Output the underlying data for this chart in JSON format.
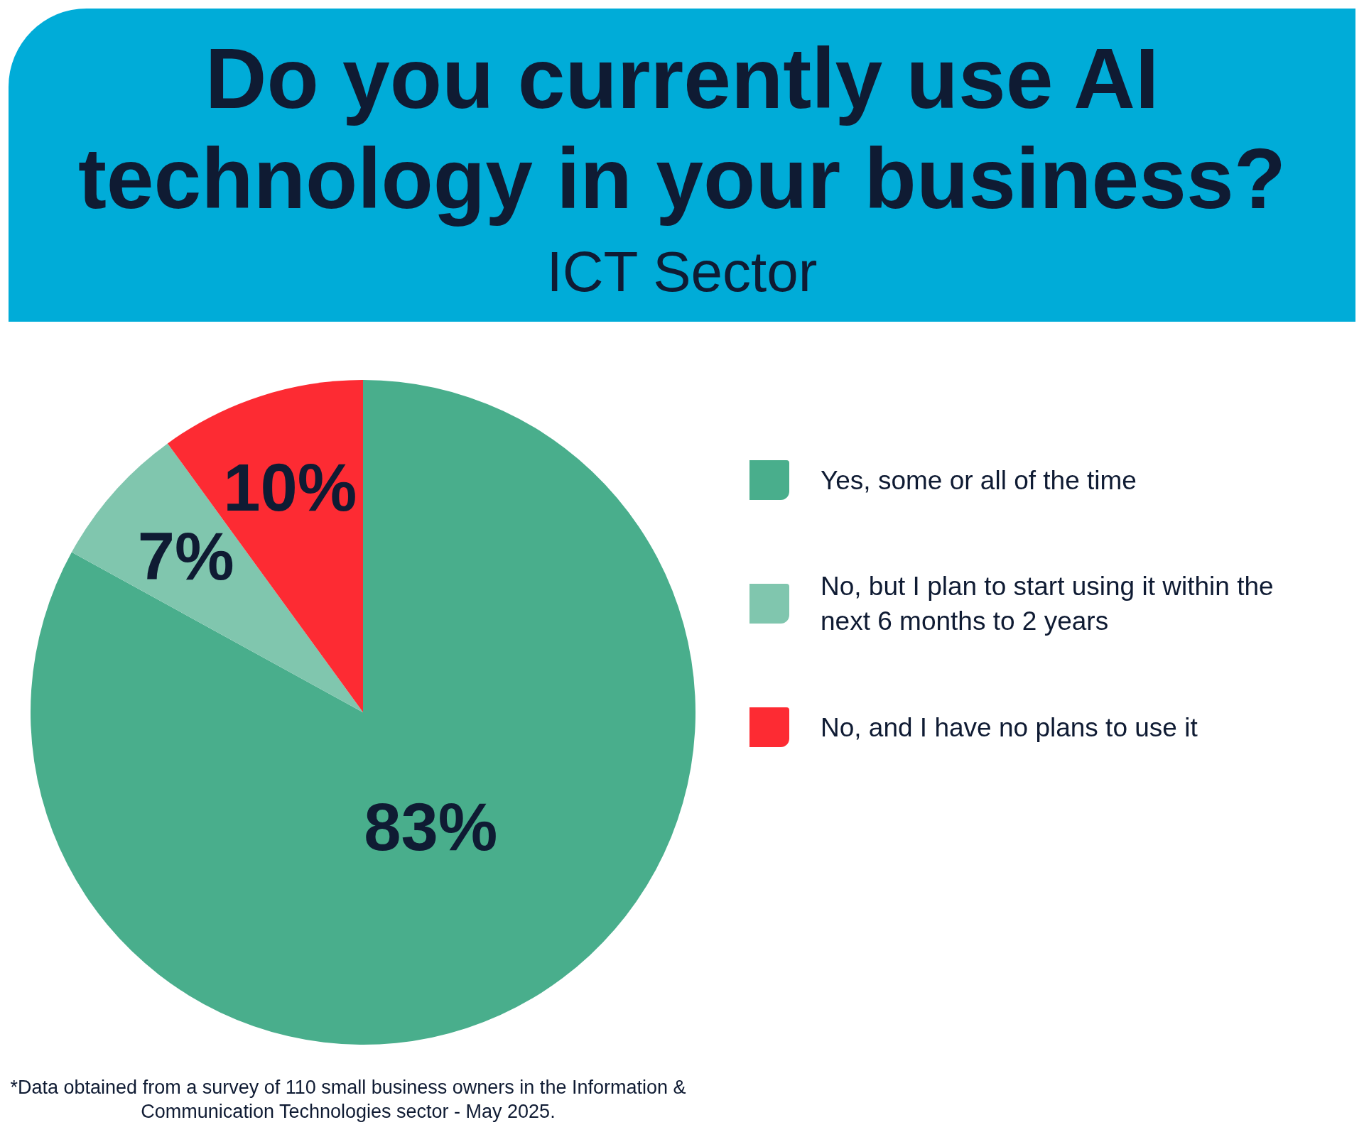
{
  "chart_data": {
    "type": "pie",
    "title": "Do you currently use AI technology in your business?",
    "subtitle": "ICT Sector",
    "categories": [
      "Yes, some or all of the time",
      "No, but I plan to start using it within the next 6 months to 2 years",
      "No, and I have no plans to use it"
    ],
    "values": [
      83,
      7,
      10
    ],
    "colors": [
      "#49ae8c",
      "#80c6ae",
      "#fd2b33"
    ],
    "value_labels": [
      "83%",
      "7%",
      "10%"
    ],
    "legend": "right",
    "annotations": [
      "*Data obtained from a survey of 110 small business owners in the Information & Communication Technologies sector - May 2025."
    ]
  }
}
